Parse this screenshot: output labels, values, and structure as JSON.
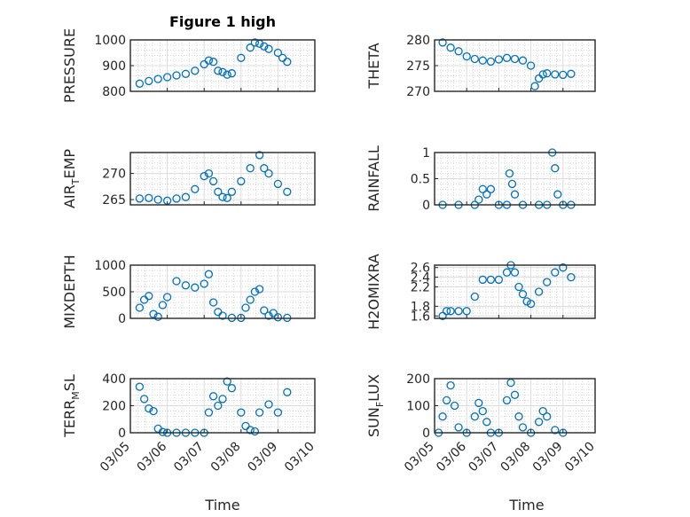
{
  "figure": {
    "title": "Figure 1 high",
    "xlabel": "Time",
    "x_ticks": [
      "03/05",
      "03/06",
      "03/07",
      "03/08",
      "03/09",
      "03/10"
    ],
    "marker_color": "#0072BD",
    "grid": "on (major + minor dotted)"
  },
  "chart_data": [
    {
      "type": "scatter",
      "ylabel": "PRESSURE",
      "ylim": [
        800,
        1000
      ],
      "yticks": [
        "800",
        "900",
        "1000"
      ],
      "xlim": [
        "03/05",
        "03/10"
      ],
      "x": [
        "03/05 06:00",
        "03/05 12:00",
        "03/05 18:00",
        "03/06 00:00",
        "03/06 06:00",
        "03/06 12:00",
        "03/06 18:00",
        "03/07 00:00",
        "03/07 03:00",
        "03/07 06:00",
        "03/07 09:00",
        "03/07 12:00",
        "03/07 15:00",
        "03/07 18:00",
        "03/08 00:00",
        "03/08 06:00",
        "03/08 09:00",
        "03/08 12:00",
        "03/08 15:00",
        "03/08 18:00",
        "03/09 00:00",
        "03/09 03:00",
        "03/09 06:00"
      ],
      "y": [
        830,
        840,
        848,
        855,
        862,
        868,
        880,
        905,
        920,
        915,
        880,
        875,
        865,
        870,
        930,
        970,
        990,
        985,
        975,
        965,
        950,
        930,
        915
      ]
    },
    {
      "type": "scatter",
      "ylabel": "THETA",
      "ylim": [
        270,
        280
      ],
      "yticks": [
        "270",
        "275",
        "280"
      ],
      "xlim": [
        "03/05",
        "03/10"
      ],
      "x": [
        "03/05 06:00",
        "03/05 12:00",
        "03/05 18:00",
        "03/06 00:00",
        "03/06 06:00",
        "03/06 12:00",
        "03/06 18:00",
        "03/07 00:00",
        "03/07 06:00",
        "03/07 12:00",
        "03/07 18:00",
        "03/08 00:00",
        "03/08 03:00",
        "03/08 06:00",
        "03/08 09:00",
        "03/08 12:00",
        "03/08 18:00",
        "03/09 00:00",
        "03/09 06:00"
      ],
      "y": [
        279.5,
        278.5,
        277.8,
        276.8,
        276.3,
        276,
        275.8,
        276.2,
        276.5,
        276.3,
        276,
        275,
        271,
        272.5,
        273.3,
        273.5,
        273.3,
        273.2,
        273.4
      ]
    },
    {
      "type": "scatter",
      "ylabel": "AIR_TEMP",
      "ylim": [
        264,
        274
      ],
      "yticks": [
        "265",
        "270"
      ],
      "xlim": [
        "03/05",
        "03/10"
      ],
      "x": [
        "03/05 06:00",
        "03/05 12:00",
        "03/05 18:00",
        "03/06 00:00",
        "03/06 06:00",
        "03/06 12:00",
        "03/06 18:00",
        "03/07 00:00",
        "03/07 03:00",
        "03/07 06:00",
        "03/07 09:00",
        "03/07 12:00",
        "03/07 15:00",
        "03/07 18:00",
        "03/08 00:00",
        "03/08 06:00",
        "03/08 12:00",
        "03/08 15:00",
        "03/08 18:00",
        "03/09 00:00",
        "03/09 06:00"
      ],
      "y": [
        265.2,
        265.3,
        265,
        264.8,
        265.2,
        265.5,
        267,
        269.5,
        270,
        268.5,
        266.5,
        265.5,
        265.3,
        266.5,
        268.5,
        271,
        273.5,
        271,
        270,
        268,
        266.5
      ]
    },
    {
      "type": "scatter",
      "ylabel": "RAINFALL",
      "ylim": [
        0,
        1
      ],
      "yticks": [
        "0",
        "0.5",
        "1"
      ],
      "xlim": [
        "03/05",
        "03/10"
      ],
      "x": [
        "03/05 06:00",
        "03/05 18:00",
        "03/06 06:00",
        "03/06 09:00",
        "03/06 12:00",
        "03/06 15:00",
        "03/06 18:00",
        "03/07 00:00",
        "03/07 06:00",
        "03/07 08:00",
        "03/07 10:00",
        "03/07 12:00",
        "03/07 18:00",
        "03/08 06:00",
        "03/08 12:00",
        "03/08 16:00",
        "03/08 18:00",
        "03/08 20:00",
        "03/09 00:00",
        "03/09 06:00"
      ],
      "y": [
        0,
        0,
        0,
        0.1,
        0.3,
        0.2,
        0.3,
        0,
        0,
        0.6,
        0.4,
        0.2,
        0,
        0,
        0,
        1.0,
        0.7,
        0.2,
        0,
        0
      ]
    },
    {
      "type": "scatter",
      "ylabel": "MIXDEPTH",
      "ylim": [
        0,
        1000
      ],
      "yticks": [
        "0",
        "500",
        "1000"
      ],
      "xlim": [
        "03/05",
        "03/10"
      ],
      "x": [
        "03/05 06:00",
        "03/05 09:00",
        "03/05 12:00",
        "03/05 15:00",
        "03/05 18:00",
        "03/05 21:00",
        "03/06 00:00",
        "03/06 06:00",
        "03/06 12:00",
        "03/06 18:00",
        "03/07 00:00",
        "03/07 03:00",
        "03/07 06:00",
        "03/07 09:00",
        "03/07 12:00",
        "03/07 18:00",
        "03/08 00:00",
        "03/08 03:00",
        "03/08 06:00",
        "03/08 09:00",
        "03/08 12:00",
        "03/08 15:00",
        "03/08 18:00",
        "03/08 21:00",
        "03/09 00:00",
        "03/09 06:00"
      ],
      "y": [
        200,
        350,
        420,
        80,
        30,
        250,
        400,
        700,
        620,
        580,
        650,
        830,
        300,
        120,
        50,
        10,
        10,
        200,
        350,
        500,
        550,
        150,
        50,
        100,
        20,
        10
      ]
    },
    {
      "type": "scatter",
      "ylabel": "H2OMIXRA",
      "ylim": [
        1.55,
        2.65
      ],
      "yticks": [
        "1.6",
        "1.8",
        "2.2",
        "2.4",
        "2.6"
      ],
      "xlim": [
        "03/05",
        "03/10"
      ],
      "x": [
        "03/05 06:00",
        "03/05 09:00",
        "03/05 12:00",
        "03/05 18:00",
        "03/06 00:00",
        "03/06 06:00",
        "03/06 12:00",
        "03/06 18:00",
        "03/07 00:00",
        "03/07 06:00",
        "03/07 09:00",
        "03/07 12:00",
        "03/07 15:00",
        "03/07 18:00",
        "03/07 21:00",
        "03/08 00:00",
        "03/08 06:00",
        "03/08 12:00",
        "03/08 18:00",
        "03/09 00:00",
        "03/09 06:00"
      ],
      "y": [
        1.6,
        1.7,
        1.7,
        1.7,
        1.7,
        2.0,
        2.35,
        2.35,
        2.35,
        2.5,
        2.65,
        2.5,
        2.2,
        2.05,
        1.9,
        1.85,
        2.1,
        2.3,
        2.5,
        2.6,
        2.4
      ]
    },
    {
      "type": "scatter",
      "ylabel": "TERR_MSL",
      "ylim": [
        0,
        400
      ],
      "yticks": [
        "0",
        "200",
        "400"
      ],
      "xlim": [
        "03/05",
        "03/10"
      ],
      "x": [
        "03/05 06:00",
        "03/05 09:00",
        "03/05 12:00",
        "03/05 15:00",
        "03/05 18:00",
        "03/05 21:00",
        "03/06 00:00",
        "03/06 06:00",
        "03/06 12:00",
        "03/06 18:00",
        "03/07 00:00",
        "03/07 03:00",
        "03/07 06:00",
        "03/07 09:00",
        "03/07 12:00",
        "03/07 15:00",
        "03/07 18:00",
        "03/08 00:00",
        "03/08 03:00",
        "03/08 06:00",
        "03/08 09:00",
        "03/08 12:00",
        "03/08 18:00",
        "03/09 00:00",
        "03/09 06:00"
      ],
      "y": [
        340,
        250,
        180,
        160,
        30,
        5,
        0,
        0,
        0,
        0,
        0,
        150,
        270,
        200,
        250,
        380,
        330,
        150,
        50,
        20,
        10,
        150,
        210,
        150,
        300
      ]
    },
    {
      "type": "scatter",
      "ylabel": "SUN_FLUX",
      "ylim": [
        0,
        200
      ],
      "yticks": [
        "0",
        "100",
        "200"
      ],
      "xlim": [
        "03/05",
        "03/10"
      ],
      "x": [
        "03/05 03:00",
        "03/05 06:00",
        "03/05 09:00",
        "03/05 12:00",
        "03/05 15:00",
        "03/05 18:00",
        "03/06 00:00",
        "03/06 06:00",
        "03/06 09:00",
        "03/06 12:00",
        "03/06 15:00",
        "03/06 18:00",
        "03/07 00:00",
        "03/07 06:00",
        "03/07 09:00",
        "03/07 12:00",
        "03/07 15:00",
        "03/07 18:00",
        "03/08 00:00",
        "03/08 06:00",
        "03/08 09:00",
        "03/08 12:00",
        "03/08 18:00",
        "03/09 00:00"
      ],
      "y": [
        0,
        60,
        120,
        175,
        100,
        20,
        0,
        60,
        110,
        80,
        40,
        0,
        0,
        120,
        185,
        140,
        60,
        20,
        0,
        40,
        80,
        60,
        10,
        0
      ]
    }
  ]
}
